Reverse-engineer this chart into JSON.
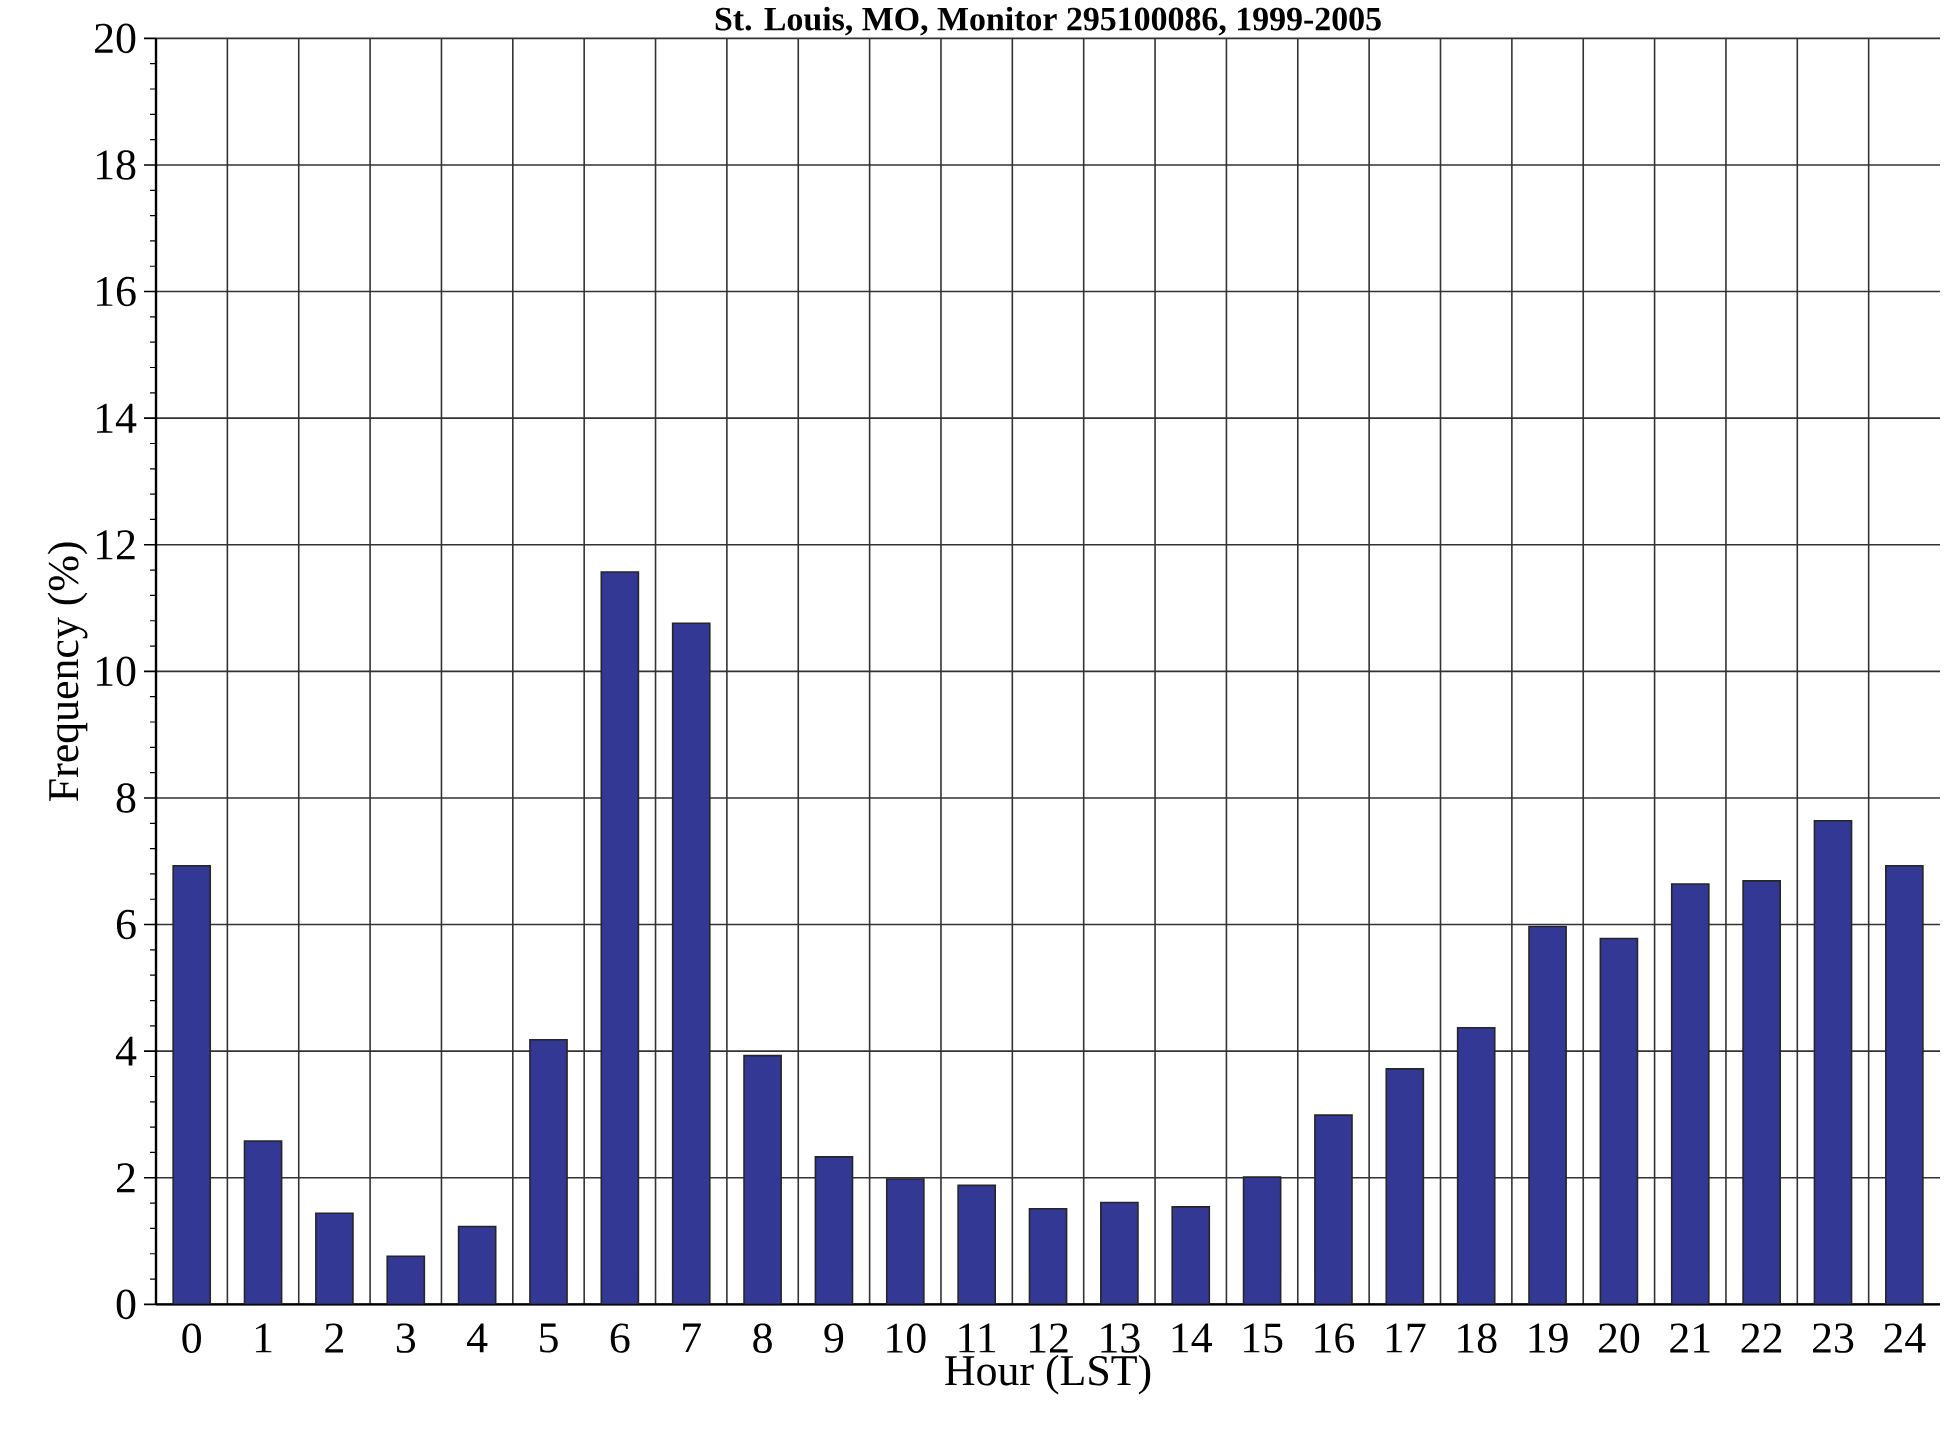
{
  "chart_data": {
    "type": "bar",
    "title": "St. Louis, MO, Monitor 295100086, 1999-2005",
    "xlabel": "Hour (LST)",
    "ylabel": "Frequency (%)",
    "categories": [
      "0",
      "1",
      "2",
      "3",
      "4",
      "5",
      "6",
      "7",
      "8",
      "9",
      "10",
      "11",
      "12",
      "13",
      "14",
      "15",
      "16",
      "17",
      "18",
      "19",
      "20",
      "21",
      "22",
      "23",
      "24"
    ],
    "values": [
      6.93,
      2.58,
      1.44,
      0.76,
      1.23,
      4.18,
      11.57,
      10.76,
      3.93,
      2.33,
      1.98,
      1.88,
      1.51,
      1.61,
      1.54,
      2.01,
      2.99,
      3.72,
      4.37,
      5.97,
      5.78,
      6.64,
      6.69,
      7.64,
      6.93
    ],
    "color": "#333894",
    "ylim": [
      0,
      20
    ],
    "yticks": [
      0,
      2,
      4,
      6,
      8,
      10,
      12,
      14,
      16,
      18,
      20
    ],
    "grid": true
  }
}
